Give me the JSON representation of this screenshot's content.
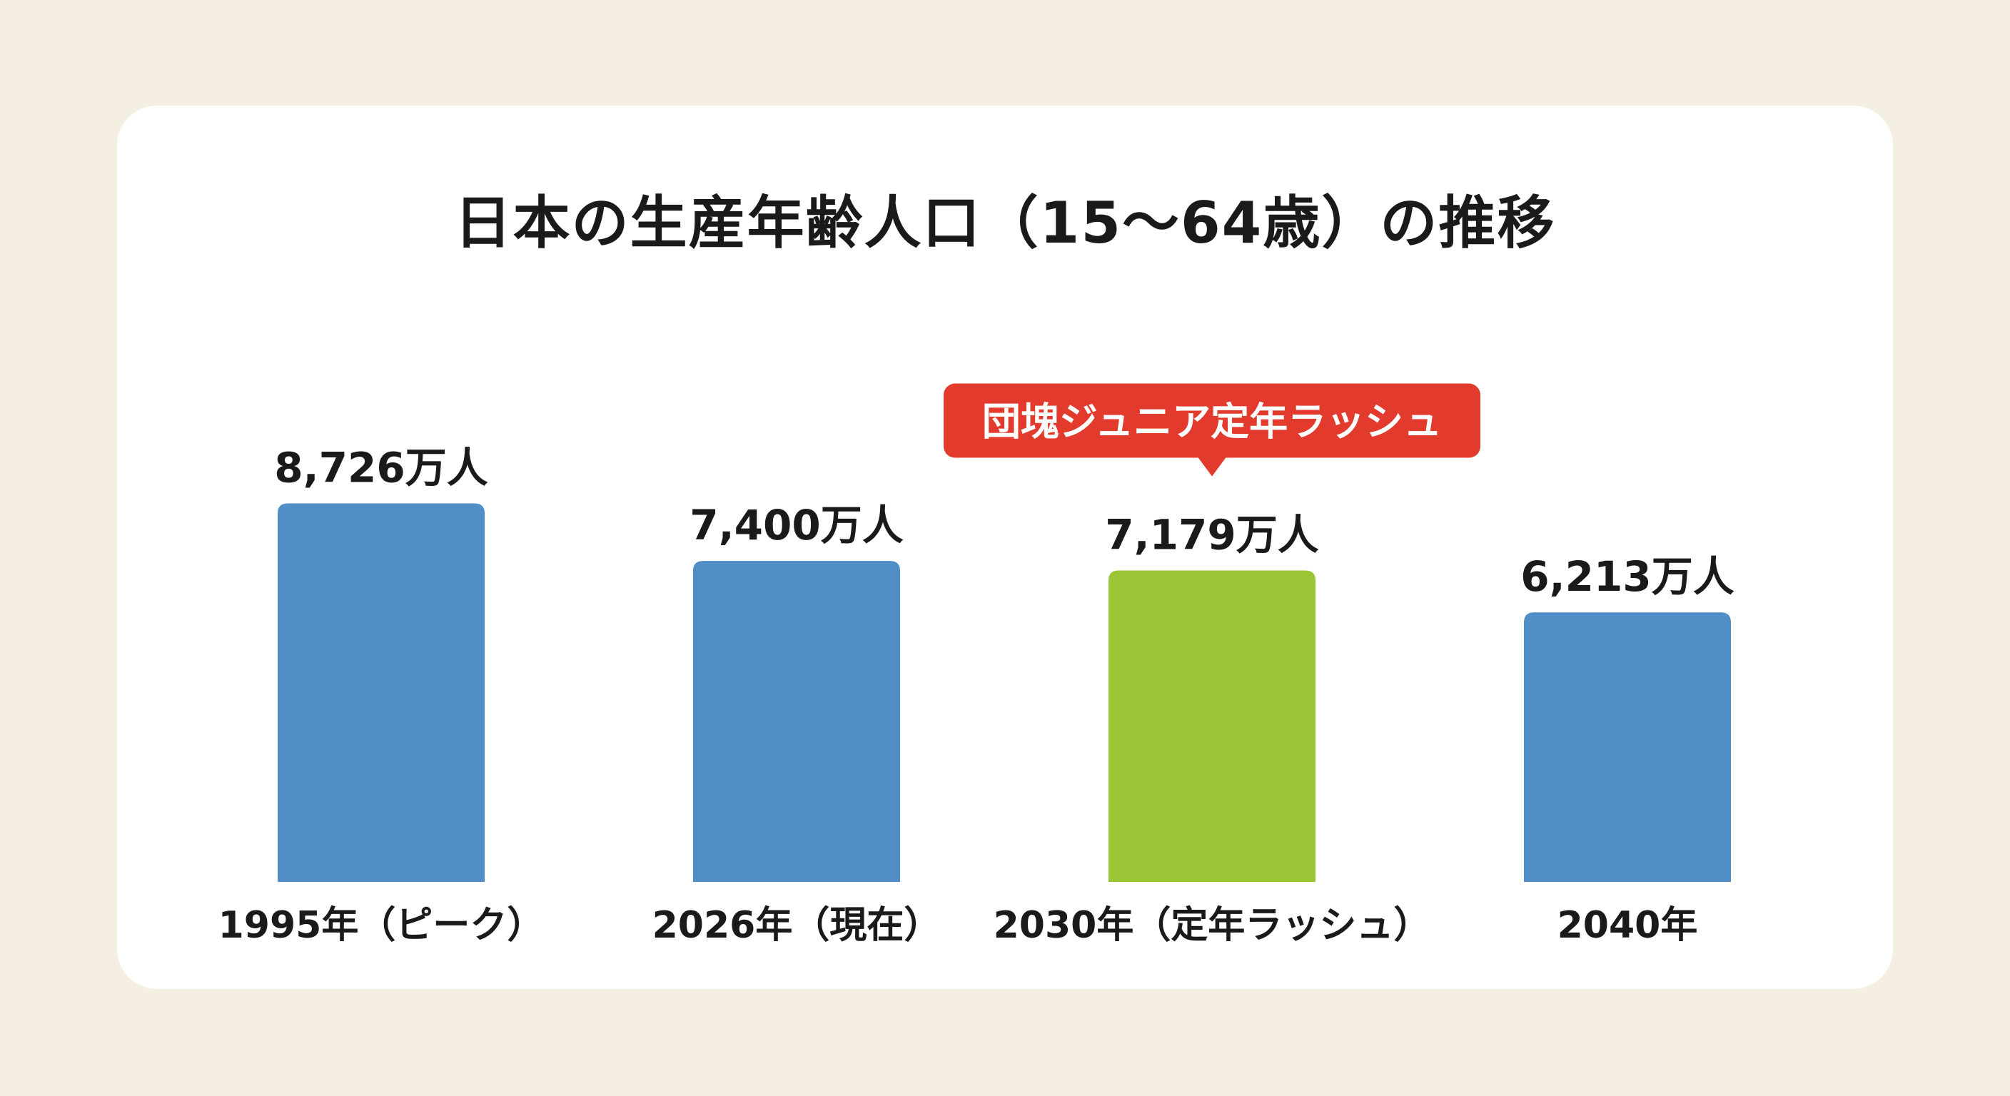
{
  "chart_data": {
    "type": "bar",
    "title": "日本の生産年齢人口（15〜64歳）の推移",
    "categories": [
      "1995年（ピーク）",
      "2026年（現在）",
      "2030年（定年ラッシュ）",
      "2040年"
    ],
    "values": [
      8726,
      7400,
      7179,
      6213
    ],
    "value_labels": [
      "8,726万人",
      "7,400万人",
      "7,179万人",
      "6,213万人"
    ],
    "unit": "万人",
    "ylim": [
      0,
      10000
    ],
    "grid": false,
    "bar_colors": [
      "#4f8ec7",
      "#4f8ec7",
      "#9ac636",
      "#4f8ec7"
    ],
    "annotation": {
      "text": "団塊ジュニア定年ラッシュ",
      "category_index": 2,
      "color": "#e23b2e"
    }
  },
  "colors": {
    "background": "#f4efe0",
    "card": "#ffffff",
    "bar_default": "#4f8ec7",
    "bar_highlight": "#9ac636",
    "callout": "#e23b2e"
  }
}
